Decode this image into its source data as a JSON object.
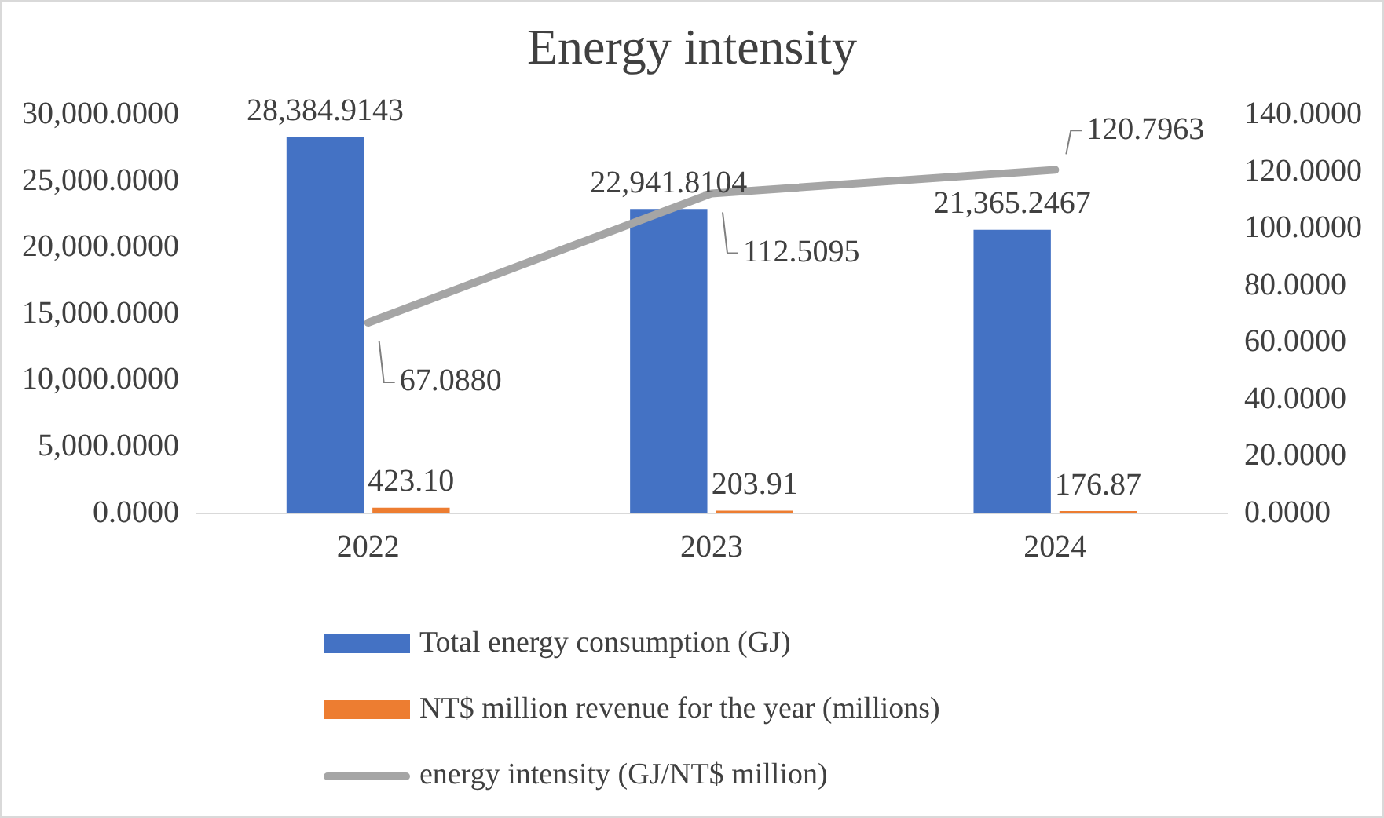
{
  "chart_data": {
    "type": "bar",
    "title": "Energy intensity",
    "categories": [
      "2022",
      "2023",
      "2024"
    ],
    "series": [
      {
        "name": "Total energy consumption (GJ)",
        "color": "#4472c4",
        "values": [
          28384.9143,
          22941.8104,
          21365.2467
        ],
        "value_labels": [
          "28,384.9143",
          "22,941.8104",
          "21,365.2467"
        ]
      },
      {
        "name": "NT$ million revenue for the year (millions)",
        "color": "#ed7d31",
        "values": [
          423.1,
          203.91,
          176.87
        ],
        "value_labels": [
          "423.10",
          "203.91",
          "176.87"
        ]
      },
      {
        "name": "energy intensity (GJ/NT$ million)",
        "type": "line",
        "axis": "y2",
        "color": "#a5a5a5",
        "marker": "none",
        "values": [
          67.088,
          112.5095,
          120.7963
        ],
        "value_labels": [
          "67.0880",
          "112.5095",
          "120.7963"
        ]
      }
    ],
    "ylim": [
      0,
      30000
    ],
    "yticks": [
      {
        "value": 0,
        "label": "0.0000"
      },
      {
        "value": 5000,
        "label": "5,000.0000"
      },
      {
        "value": 10000,
        "label": "10,000.0000"
      },
      {
        "value": 15000,
        "label": "15,000.0000"
      },
      {
        "value": 20000,
        "label": "20,000.0000"
      },
      {
        "value": 25000,
        "label": "25,000.0000"
      },
      {
        "value": 30000,
        "label": "30,000.0000"
      }
    ],
    "y2lim": [
      0,
      140
    ],
    "y2ticks": [
      {
        "value": 0,
        "label": "0.0000"
      },
      {
        "value": 20,
        "label": "20.0000"
      },
      {
        "value": 40,
        "label": "40.0000"
      },
      {
        "value": 60,
        "label": "60.0000"
      },
      {
        "value": 80,
        "label": "80.0000"
      },
      {
        "value": 100,
        "label": "100.0000"
      },
      {
        "value": 120,
        "label": "120.0000"
      },
      {
        "value": 140,
        "label": "140.0000"
      }
    ],
    "grid": false,
    "legend": "bottom"
  }
}
